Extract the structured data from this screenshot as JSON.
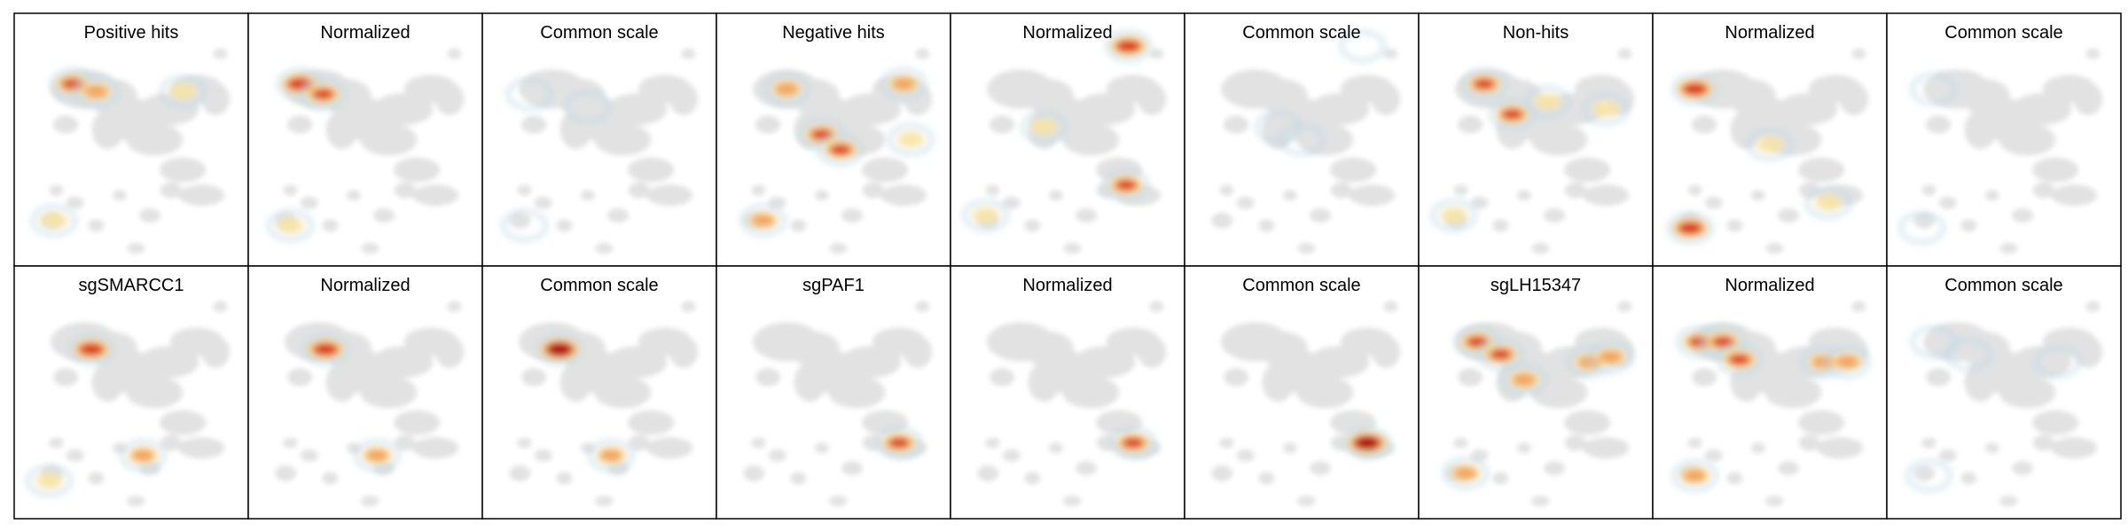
{
  "figure": {
    "colors": {
      "background_cells": "#e2e2e2",
      "low": "#b9d7e6",
      "mid": "#f7e3a3",
      "high_mid": "#f2a05a",
      "high": "#d7301f",
      "max": "#b10e0e",
      "frame": "#000000"
    }
  },
  "chart_data": {
    "type": "heatmap",
    "subtype": "umap-density-small-multiples",
    "grid": false,
    "rows": [
      {
        "panels": [
          {
            "title": "Positive hits",
            "mode": "raw",
            "hotspots": [
              [
                0.25,
                0.28,
                3
              ],
              [
                0.35,
                0.31,
                2
              ],
              [
                0.72,
                0.31,
                1
              ],
              [
                0.17,
                0.82,
                1
              ]
            ]
          },
          {
            "title": "Normalized",
            "mode": "normalized",
            "hotspots": [
              [
                0.22,
                0.28,
                4
              ],
              [
                0.32,
                0.32,
                3
              ],
              [
                0.18,
                0.84,
                1
              ]
            ]
          },
          {
            "title": "Common scale",
            "mode": "common",
            "hotspots": [
              [
                0.2,
                0.32,
                0
              ],
              [
                0.45,
                0.37,
                0
              ],
              [
                0.18,
                0.84,
                0
              ]
            ]
          },
          {
            "title": "Negative hits",
            "mode": "raw",
            "hotspots": [
              [
                0.3,
                0.3,
                2
              ],
              [
                0.45,
                0.48,
                3
              ],
              [
                0.53,
                0.54,
                3
              ],
              [
                0.8,
                0.28,
                2
              ],
              [
                0.83,
                0.5,
                1
              ],
              [
                0.2,
                0.82,
                2
              ]
            ]
          },
          {
            "title": "Normalized",
            "mode": "normalized",
            "hotspots": [
              [
                0.76,
                0.13,
                4
              ],
              [
                0.75,
                0.68,
                3
              ],
              [
                0.4,
                0.45,
                1
              ],
              [
                0.15,
                0.8,
                1
              ]
            ]
          },
          {
            "title": "Common scale",
            "mode": "common",
            "hotspots": [
              [
                0.76,
                0.13,
                0
              ],
              [
                0.4,
                0.45,
                0
              ],
              [
                0.5,
                0.5,
                0
              ]
            ]
          },
          {
            "title": "Non-hits",
            "mode": "raw",
            "hotspots": [
              [
                0.28,
                0.28,
                3
              ],
              [
                0.4,
                0.4,
                3
              ],
              [
                0.55,
                0.35,
                1
              ],
              [
                0.8,
                0.38,
                1
              ],
              [
                0.15,
                0.8,
                1
              ]
            ]
          },
          {
            "title": "Normalized",
            "mode": "normalized",
            "hotspots": [
              [
                0.18,
                0.3,
                4
              ],
              [
                0.16,
                0.85,
                4
              ],
              [
                0.5,
                0.52,
                1
              ],
              [
                0.75,
                0.75,
                1
              ]
            ]
          },
          {
            "title": "Common scale",
            "mode": "common",
            "hotspots": [
              [
                0.2,
                0.3,
                0
              ],
              [
                0.15,
                0.85,
                0
              ]
            ]
          }
        ]
      },
      {
        "panels": [
          {
            "title": "sgSMARCC1",
            "mode": "raw",
            "hotspots": [
              [
                0.33,
                0.33,
                4
              ],
              [
                0.55,
                0.75,
                2
              ],
              [
                0.15,
                0.85,
                1
              ]
            ]
          },
          {
            "title": "Normalized",
            "mode": "normalized",
            "hotspots": [
              [
                0.33,
                0.33,
                4
              ],
              [
                0.55,
                0.75,
                2
              ]
            ]
          },
          {
            "title": "Common scale",
            "mode": "common",
            "hotspots": [
              [
                0.33,
                0.33,
                5
              ],
              [
                0.55,
                0.75,
                2
              ]
            ]
          },
          {
            "title": "sgPAF1",
            "mode": "raw",
            "hotspots": [
              [
                0.78,
                0.7,
                3
              ]
            ]
          },
          {
            "title": "Normalized",
            "mode": "normalized",
            "hotspots": [
              [
                0.78,
                0.7,
                3
              ]
            ]
          },
          {
            "title": "Common scale",
            "mode": "common",
            "hotspots": [
              [
                0.78,
                0.7,
                5
              ]
            ]
          },
          {
            "title": "sgLH15347",
            "mode": "raw",
            "hotspots": [
              [
                0.25,
                0.3,
                3
              ],
              [
                0.35,
                0.35,
                3
              ],
              [
                0.45,
                0.45,
                2
              ],
              [
                0.73,
                0.38,
                2
              ],
              [
                0.82,
                0.36,
                2
              ],
              [
                0.2,
                0.82,
                2
              ]
            ]
          },
          {
            "title": "Normalized",
            "mode": "normalized",
            "hotspots": [
              [
                0.2,
                0.3,
                3
              ],
              [
                0.3,
                0.3,
                3
              ],
              [
                0.37,
                0.37,
                3
              ],
              [
                0.73,
                0.38,
                2
              ],
              [
                0.83,
                0.38,
                2
              ],
              [
                0.18,
                0.83,
                2
              ]
            ]
          },
          {
            "title": "Common scale",
            "mode": "common",
            "hotspots": [
              [
                0.2,
                0.3,
                0
              ],
              [
                0.35,
                0.35,
                0
              ],
              [
                0.73,
                0.38,
                0
              ],
              [
                0.18,
                0.83,
                0
              ]
            ]
          }
        ]
      }
    ]
  }
}
